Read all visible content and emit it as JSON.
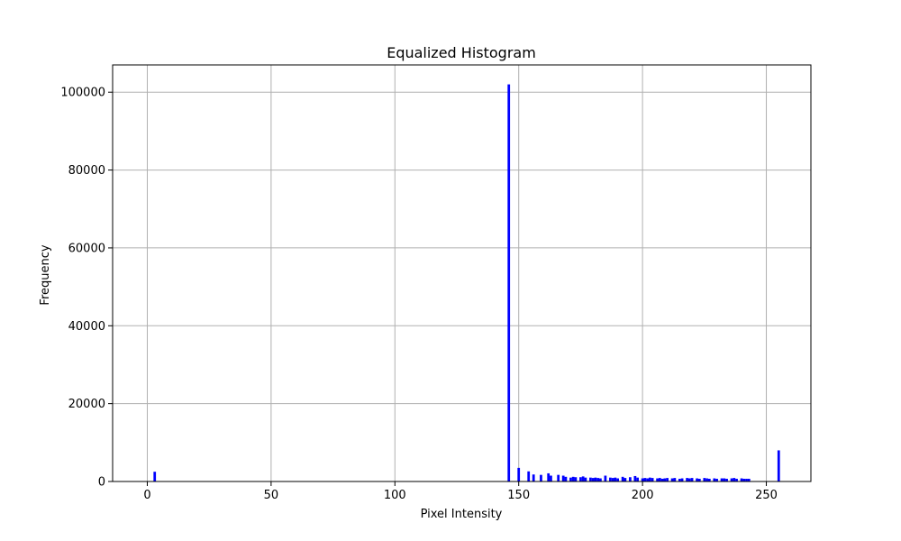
{
  "chart_data": {
    "type": "bar",
    "title": "Equalized Histogram",
    "xlabel": "Pixel Intensity",
    "ylabel": "Frequency",
    "xlim": [
      -14,
      268
    ],
    "ylim": [
      0,
      107000
    ],
    "xticks": [
      0,
      50,
      100,
      150,
      200,
      250
    ],
    "yticks": [
      0,
      20000,
      40000,
      60000,
      80000,
      100000
    ],
    "grid": true,
    "bar_color": "#0000ff",
    "x": [
      3,
      146,
      150,
      154,
      156,
      159,
      162,
      163,
      166,
      168,
      169,
      171,
      172,
      173,
      175,
      176,
      177,
      179,
      180,
      181,
      182,
      183,
      185,
      187,
      188,
      189,
      190,
      192,
      193,
      195,
      197,
      198,
      200,
      201,
      202,
      203,
      204,
      206,
      207,
      208,
      209,
      210,
      212,
      213,
      215,
      216,
      218,
      219,
      220,
      222,
      223,
      225,
      226,
      227,
      229,
      230,
      232,
      233,
      234,
      236,
      237,
      238,
      240,
      241,
      242,
      243,
      255
    ],
    "values": [
      2500,
      102000,
      3500,
      2600,
      1800,
      1700,
      2100,
      1500,
      1700,
      1500,
      1200,
      1000,
      1200,
      1100,
      1100,
      1300,
      1000,
      1000,
      900,
      1000,
      900,
      800,
      1500,
      1000,
      900,
      1000,
      800,
      1200,
      900,
      1100,
      1400,
      1000,
      800,
      900,
      800,
      1000,
      900,
      800,
      900,
      700,
      800,
      900,
      800,
      900,
      700,
      800,
      900,
      800,
      900,
      800,
      700,
      900,
      800,
      700,
      800,
      700,
      800,
      800,
      700,
      800,
      900,
      700,
      800,
      700,
      700,
      700,
      8000
    ]
  }
}
